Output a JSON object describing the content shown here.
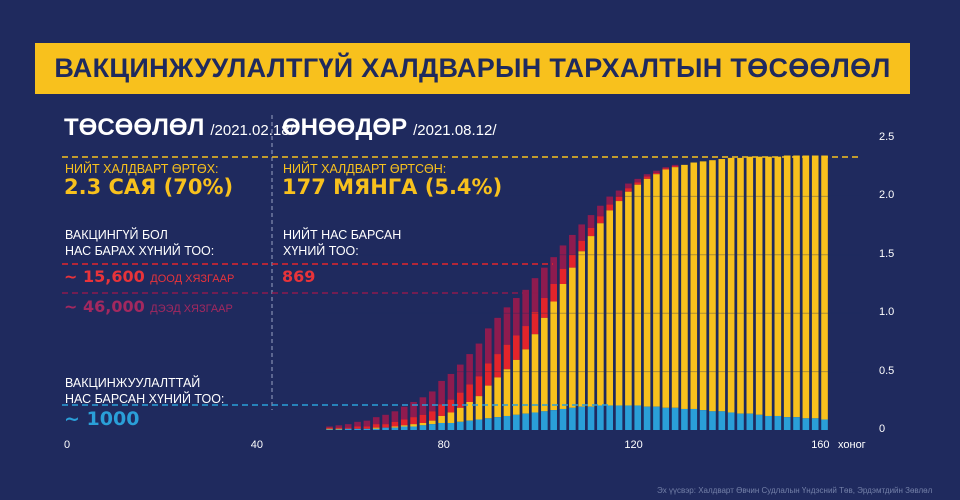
{
  "title": "ВАКЦИНЖУУЛАЛТГҮЙ ХАЛДВАРЫН ТАРХАЛТЫН ТӨСӨӨЛӨЛ",
  "forecast": {
    "heading": "ТӨСӨӨЛӨЛ",
    "date": "/2021.02.18/",
    "infected_label": "НИЙТ ХАЛДВАРТ ӨРТӨХ:",
    "infected_value": "2.3 САЯ (70%)",
    "deaths_label_1": "ВАКЦИНГҮЙ БОЛ",
    "deaths_label_2": "НАС БАРАХ ХҮНИЙ ТОО:",
    "lower_value": "~ 15,600",
    "lower_label": "ДООД ХЯЗГААР",
    "upper_value": "~ 46,000",
    "upper_label": "ДЭЭД ХЯЗГААР",
    "vacc_label_1": "ВАКЦИНЖУУЛАЛТТАЙ",
    "vacc_label_2": "НАС БАРСАН ХҮНИЙ ТОО:",
    "vacc_value": "~ 1000"
  },
  "today": {
    "heading": "ӨНӨӨДӨР",
    "date": "/2021.08.12/",
    "infected_label": "НИЙТ ХАЛДВАРТ ӨРТСӨН:",
    "infected_value": "177 МЯНГА (5.4%)",
    "deaths_label_1": "НИЙТ НАС БАРСАН",
    "deaths_label_2": "ХҮНИЙ ТОО:",
    "deaths_value": "869"
  },
  "source": "Эх үүсвэр: Халдварт Өвчин Судлалын Үндэсний Төв, Эрдэмтдийн Зөвлөл",
  "colors": {
    "yellow": "#f8c11d",
    "red": "#e3242b",
    "purple": "#8e1b4f",
    "blue": "#2a9fd8"
  },
  "chart_data": {
    "type": "bar",
    "stacked": true,
    "xlabel": "хоног",
    "ylabel": "",
    "xlim": [
      0,
      165
    ],
    "ylim": [
      0,
      2.5
    ],
    "x_ticks": [
      "0",
      "40",
      "80",
      "120",
      "160"
    ],
    "x_tick_values": [
      0,
      40,
      80,
      120,
      160
    ],
    "y_ticks": [
      "2.5",
      "2.0",
      "1.5",
      "1.0",
      "0.5",
      "0"
    ],
    "y_tick_values": [
      2.5,
      2.0,
      1.5,
      1.0,
      0.5,
      0
    ],
    "x": [
      56,
      58,
      60,
      62,
      64,
      66,
      68,
      70,
      72,
      74,
      76,
      78,
      80,
      82,
      84,
      86,
      88,
      90,
      92,
      94,
      96,
      98,
      100,
      102,
      104,
      106,
      108,
      110,
      112,
      114,
      116,
      118,
      120,
      122,
      124,
      126,
      128,
      130,
      132,
      134,
      136,
      138,
      140,
      142,
      144,
      146,
      148,
      150,
      152,
      154,
      156,
      158,
      160,
      162
    ],
    "series": [
      {
        "name": "vaccinated-deaths-related (blue)",
        "values": [
          0.005,
          0.005,
          0.01,
          0.01,
          0.01,
          0.01,
          0.02,
          0.02,
          0.03,
          0.03,
          0.04,
          0.05,
          0.06,
          0.06,
          0.07,
          0.08,
          0.09,
          0.1,
          0.11,
          0.12,
          0.13,
          0.14,
          0.15,
          0.16,
          0.17,
          0.18,
          0.19,
          0.2,
          0.2,
          0.21,
          0.21,
          0.21,
          0.21,
          0.21,
          0.2,
          0.2,
          0.19,
          0.19,
          0.18,
          0.18,
          0.17,
          0.16,
          0.16,
          0.15,
          0.14,
          0.14,
          0.13,
          0.12,
          0.12,
          0.11,
          0.11,
          0.1,
          0.1,
          0.09
        ]
      },
      {
        "name": "cumulative infected (yellow, total incl. blue)",
        "values": [
          0.01,
          0.01,
          0.01,
          0.01,
          0.01,
          0.02,
          0.02,
          0.03,
          0.04,
          0.05,
          0.06,
          0.08,
          0.12,
          0.15,
          0.19,
          0.24,
          0.29,
          0.38,
          0.45,
          0.52,
          0.6,
          0.69,
          0.82,
          0.96,
          1.1,
          1.25,
          1.39,
          1.53,
          1.66,
          1.77,
          1.88,
          1.96,
          2.04,
          2.1,
          2.15,
          2.19,
          2.23,
          2.25,
          2.27,
          2.29,
          2.3,
          2.31,
          2.32,
          2.33,
          2.33,
          2.34,
          2.34,
          2.34,
          2.34,
          2.35,
          2.35,
          2.35,
          2.35,
          2.35
        ]
      },
      {
        "name": "lower bound addition (red)",
        "values": [
          0.01,
          0.01,
          0.01,
          0.02,
          0.02,
          0.03,
          0.03,
          0.04,
          0.05,
          0.06,
          0.07,
          0.08,
          0.1,
          0.11,
          0.13,
          0.15,
          0.17,
          0.19,
          0.2,
          0.21,
          0.21,
          0.2,
          0.19,
          0.17,
          0.15,
          0.13,
          0.11,
          0.09,
          0.07,
          0.06,
          0.05,
          0.04,
          0.03,
          0.02,
          0.02,
          0.01,
          0.01,
          0.01,
          0,
          0,
          0,
          0,
          0,
          0,
          0,
          0,
          0,
          0,
          0,
          0,
          0,
          0,
          0,
          0
        ]
      },
      {
        "name": "upper bound addition (purple)",
        "values": [
          0.01,
          0.02,
          0.03,
          0.04,
          0.05,
          0.06,
          0.08,
          0.09,
          0.11,
          0.13,
          0.15,
          0.17,
          0.2,
          0.22,
          0.24,
          0.26,
          0.28,
          0.3,
          0.31,
          0.32,
          0.32,
          0.31,
          0.29,
          0.26,
          0.23,
          0.2,
          0.17,
          0.14,
          0.11,
          0.09,
          0.07,
          0.05,
          0.04,
          0.03,
          0.02,
          0.02,
          0.01,
          0.01,
          0,
          0,
          0,
          0,
          0,
          0,
          0,
          0,
          0,
          0,
          0,
          0,
          0,
          0,
          0,
          0
        ]
      }
    ],
    "reference_lines": [
      {
        "name": "total-infected",
        "value": 2.35,
        "color": "yellow"
      },
      {
        "name": "deaths-lower",
        "value": 1.42,
        "color": "red"
      },
      {
        "name": "deaths-upper",
        "value": 1.17,
        "color": "purple"
      },
      {
        "name": "deaths-vaccinated",
        "value": 0.21,
        "color": "blue"
      }
    ]
  }
}
